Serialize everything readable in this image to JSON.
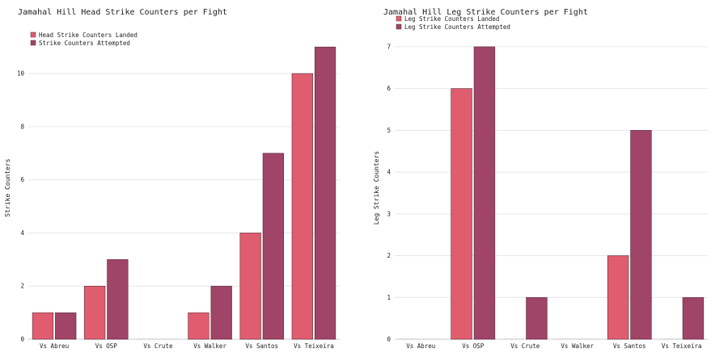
{
  "chart_data": [
    {
      "type": "bar",
      "title": "Jamahal Hill Head Strike Counters per Fight",
      "xlabel": "",
      "ylabel": "Strike Counters",
      "ylim": [
        0,
        11.4
      ],
      "yticks": [
        0,
        2,
        4,
        6,
        8,
        10
      ],
      "grid": true,
      "legend_position": "top-left",
      "categories": [
        "Vs Abreu",
        "Vs OSP",
        "Vs Crute",
        "Vs Walker",
        "Vs Santos",
        "Vs Teixeira"
      ],
      "series": [
        {
          "name": "Head Strike Counters Landed",
          "color": "#e05d6f",
          "values": [
            1,
            2,
            0,
            1,
            4,
            10
          ]
        },
        {
          "name": "Strike Counters Attempted",
          "color": "#a04468",
          "values": [
            1,
            3,
            0,
            2,
            7,
            11
          ]
        }
      ]
    },
    {
      "type": "bar",
      "title": "Jamahal Hill Leg Strike Counters per Fight",
      "xlabel": "",
      "ylabel": "Leg Strike Counters",
      "ylim": [
        0,
        7.25
      ],
      "yticks": [
        0,
        1,
        2,
        3,
        4,
        5,
        6,
        7
      ],
      "grid": true,
      "legend_position": "top-left",
      "categories": [
        "Vs Abreu",
        "Vs OSP",
        "Vs Crute",
        "Vs Walker",
        "Vs Santos",
        "Vs Teixeira"
      ],
      "series": [
        {
          "name": "Leg Strike Counters Landed",
          "color": "#e05d6f",
          "values": [
            0,
            6,
            0,
            0,
            2,
            0
          ]
        },
        {
          "name": "Leg Strike Counters Attempted",
          "color": "#a04468",
          "values": [
            0,
            7,
            1,
            0,
            5,
            1
          ]
        }
      ]
    }
  ]
}
